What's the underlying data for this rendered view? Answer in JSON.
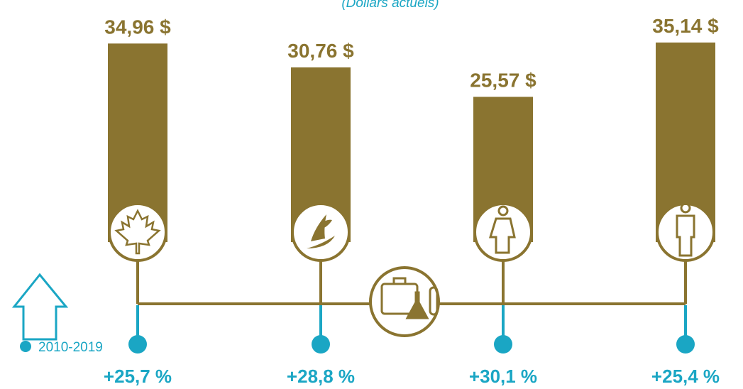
{
  "chart_data": {
    "type": "bar",
    "subtitle": "(Dollars actuels)",
    "values": [
      34.96,
      30.76,
      25.57,
      35.14
    ],
    "value_labels": [
      "34,96 $",
      "30,76 $",
      "25,57 $",
      "35,14 $"
    ],
    "color": "#8a7430",
    "ylim": [
      0,
      40
    ],
    "growth": {
      "label": "2010-2019",
      "color": "#1aa6c4",
      "values": [
        25.7,
        28.8,
        30.1,
        25.4
      ],
      "value_labels": [
        "+25,7 %",
        "+28,8 %",
        "+30,1 %",
        "+25,4 %"
      ]
    }
  }
}
